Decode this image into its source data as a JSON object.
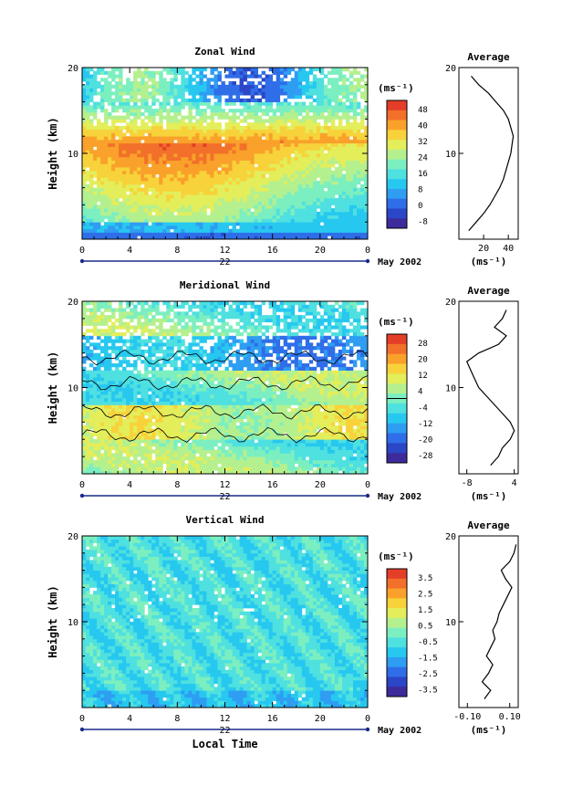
{
  "units_label": "(ms⁻¹)",
  "month_label": "May 2002",
  "day_label": "22",
  "xlabel_bottom": "Local Time",
  "x_ticks": [
    "0",
    "4",
    "8",
    "12",
    "16",
    "20",
    "0"
  ],
  "y_ticks": [
    "20",
    "10"
  ],
  "ylabel": "Height (km)",
  "chart_data": [
    {
      "type": "heatmap",
      "title": "Zonal Wind",
      "xlabel": "",
      "ylabel": "Height (km)",
      "xlim": [
        0,
        24
      ],
      "ylim": [
        0,
        20
      ],
      "colorbar_ticks": [
        "48",
        "40",
        "32",
        "24",
        "16",
        "8",
        "0",
        "-8"
      ],
      "colorbar_range": [
        -8,
        56
      ],
      "colorbar_zero_line": false,
      "contours": false,
      "profile": {
        "title": "Average",
        "xlabel": "(ms⁻¹)",
        "x_ticks": [
          "20",
          "40"
        ],
        "xlim": [
          0,
          48
        ],
        "heights": [
          1,
          2,
          3,
          4,
          5,
          6,
          7,
          8,
          9,
          10,
          11,
          12,
          13,
          14,
          15,
          16,
          17,
          18,
          19
        ],
        "values": [
          8,
          14,
          20,
          25,
          29,
          33,
          36,
          38,
          40,
          42,
          43,
          44,
          42,
          40,
          36,
          30,
          24,
          16,
          10
        ]
      }
    },
    {
      "type": "heatmap",
      "title": "Meridional Wind",
      "xlabel": "",
      "ylabel": "Height (km)",
      "xlim": [
        0,
        24
      ],
      "ylim": [
        0,
        20
      ],
      "colorbar_ticks": [
        "28",
        "20",
        "12",
        "4",
        "-4",
        "-12",
        "-20",
        "-28"
      ],
      "colorbar_range": [
        -32,
        32
      ],
      "colorbar_zero_line": true,
      "contours": true,
      "profile": {
        "title": "Average",
        "xlabel": "(ms⁻¹)",
        "x_ticks": [
          "-8",
          "4"
        ],
        "xlim": [
          -10,
          5
        ],
        "heights": [
          1,
          2,
          3,
          4,
          5,
          6,
          7,
          8,
          9,
          10,
          11,
          12,
          13,
          14,
          15,
          16,
          17,
          18,
          19
        ],
        "values": [
          -2,
          0,
          1,
          3,
          4,
          3,
          1,
          -1,
          -3,
          -5,
          -6,
          -7,
          -8,
          -5,
          0,
          2,
          -1,
          1,
          2
        ]
      }
    },
    {
      "type": "heatmap",
      "title": "Vertical Wind",
      "xlabel": "Local Time",
      "ylabel": "Height (km)",
      "xlim": [
        0,
        24
      ],
      "ylim": [
        0,
        20
      ],
      "colorbar_ticks": [
        "3.5",
        "2.5",
        "1.5",
        "0.5",
        "-0.5",
        "-1.5",
        "-2.5",
        "-3.5"
      ],
      "colorbar_range": [
        -4,
        4
      ],
      "colorbar_zero_line": false,
      "contours": false,
      "profile": {
        "title": "Average",
        "xlabel": "(ms⁻¹)",
        "x_ticks": [
          "-0.10",
          "0.10"
        ],
        "xlim": [
          -0.14,
          0.14
        ],
        "heights": [
          1,
          2,
          3,
          4,
          5,
          6,
          7,
          8,
          9,
          10,
          11,
          12,
          13,
          14,
          15,
          16,
          17,
          18,
          19
        ],
        "values": [
          -0.02,
          0.01,
          -0.03,
          0.0,
          0.02,
          -0.01,
          0.01,
          0.03,
          0.02,
          0.04,
          0.05,
          0.07,
          0.09,
          0.11,
          0.08,
          0.06,
          0.1,
          0.12,
          0.13
        ]
      }
    }
  ]
}
